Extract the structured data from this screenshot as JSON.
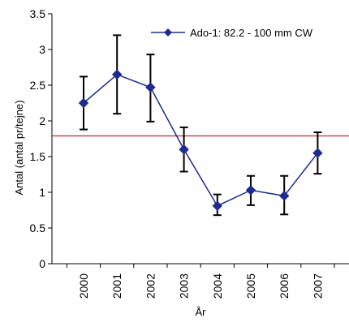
{
  "chart_data": {
    "type": "line",
    "title": "",
    "xlabel": "År",
    "ylabel": "Antal (antal pr/tejne)",
    "categories": [
      "2000",
      "2001",
      "2002",
      "2003",
      "2004",
      "2005",
      "2006",
      "2007"
    ],
    "ylim": [
      0,
      3.5
    ],
    "yticks": [
      "0",
      "0.5",
      "1",
      "1.5",
      "2",
      "2.5",
      "3",
      "3.5"
    ],
    "grid": false,
    "legend_position": "top-right",
    "series": [
      {
        "name": "Ado-1: 82.2 - 100 mm CW",
        "color": "#1f2b8f",
        "marker": "diamond",
        "values": [
          2.25,
          2.65,
          2.47,
          1.6,
          0.81,
          1.03,
          0.95,
          1.55
        ],
        "error_low": [
          1.88,
          2.1,
          1.99,
          1.29,
          0.68,
          0.82,
          0.69,
          1.26
        ],
        "error_high": [
          2.62,
          3.2,
          2.93,
          1.91,
          0.97,
          1.23,
          1.23,
          1.84
        ]
      }
    ],
    "reference_line": {
      "value": 1.79,
      "color": "#c0272d"
    }
  }
}
